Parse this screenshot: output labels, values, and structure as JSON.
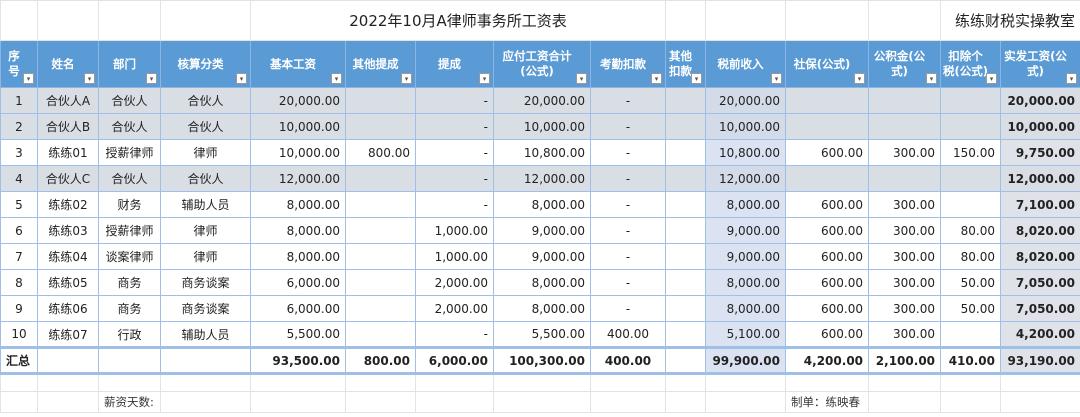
{
  "title": "2022年10月A律师事务所工资表",
  "brand": "练练财税实操教室",
  "headers": [
    "序号",
    "姓名",
    "部门",
    "核算分类",
    "基本工资",
    "其他提成",
    "提成",
    "应付工资合计(公式)",
    "考勤扣款",
    "其他扣款",
    "税前收入",
    "社保(公式)",
    "公积金(公式)",
    "扣除个税(公式)",
    "实发工资(公式)"
  ],
  "rows": [
    [
      "1",
      "合伙人A",
      "合伙人",
      "合伙人",
      "20,000.00",
      "",
      "-",
      "20,000.00",
      "-",
      "",
      "20,000.00",
      "",
      "",
      "",
      "20,000.00"
    ],
    [
      "2",
      "合伙人B",
      "合伙人",
      "合伙人",
      "10,000.00",
      "",
      "-",
      "10,000.00",
      "-",
      "",
      "10,000.00",
      "",
      "",
      "",
      "10,000.00"
    ],
    [
      "3",
      "练练01",
      "授薪律师",
      "律师",
      "10,000.00",
      "800.00",
      "-",
      "10,800.00",
      "-",
      "",
      "10,800.00",
      "600.00",
      "300.00",
      "150.00",
      "9,750.00"
    ],
    [
      "4",
      "合伙人C",
      "合伙人",
      "合伙人",
      "12,000.00",
      "",
      "-",
      "12,000.00",
      "-",
      "",
      "12,000.00",
      "",
      "",
      "",
      "12,000.00"
    ],
    [
      "5",
      "练练02",
      "财务",
      "辅助人员",
      "8,000.00",
      "",
      "-",
      "8,000.00",
      "-",
      "",
      "8,000.00",
      "600.00",
      "300.00",
      "",
      "7,100.00"
    ],
    [
      "6",
      "练练03",
      "授薪律师",
      "律师",
      "8,000.00",
      "",
      "1,000.00",
      "9,000.00",
      "-",
      "",
      "9,000.00",
      "600.00",
      "300.00",
      "80.00",
      "8,020.00"
    ],
    [
      "7",
      "练练04",
      "谈案律师",
      "律师",
      "8,000.00",
      "",
      "1,000.00",
      "9,000.00",
      "-",
      "",
      "9,000.00",
      "600.00",
      "300.00",
      "80.00",
      "8,020.00"
    ],
    [
      "8",
      "练练05",
      "商务",
      "商务谈案",
      "6,000.00",
      "",
      "2,000.00",
      "8,000.00",
      "-",
      "",
      "8,000.00",
      "600.00",
      "300.00",
      "50.00",
      "7,050.00"
    ],
    [
      "9",
      "练练06",
      "商务",
      "商务谈案",
      "6,000.00",
      "",
      "2,000.00",
      "8,000.00",
      "-",
      "",
      "8,000.00",
      "600.00",
      "300.00",
      "50.00",
      "7,050.00"
    ],
    [
      "10",
      "练练07",
      "行政",
      "辅助人员",
      "5,500.00",
      "",
      "-",
      "5,500.00",
      "400.00",
      "",
      "5,100.00",
      "600.00",
      "300.00",
      "",
      "4,200.00"
    ]
  ],
  "partner_rows": [
    0,
    1,
    3
  ],
  "total": [
    "汇总",
    "",
    "",
    "",
    "93,500.00",
    "800.00",
    "6,000.00",
    "100,300.00",
    "400.00",
    "",
    "99,900.00",
    "4,200.00",
    "2,100.00",
    "410.00",
    "93,190.00"
  ],
  "footer": {
    "days_label": "薪资天数:",
    "prepared_by": "制单：练映春"
  },
  "colors": {
    "header": "#5b9bd5",
    "partner_row": "#d9dde4",
    "pretax_col": "#dbe3f2"
  }
}
